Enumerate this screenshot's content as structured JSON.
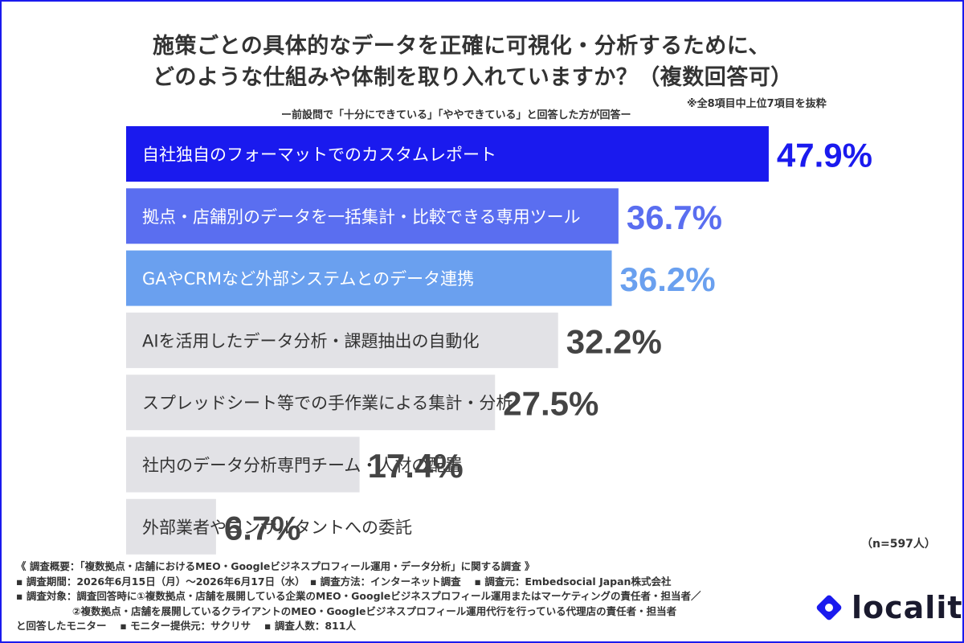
{
  "title_line1": "施策ごとの具体的なデータを正確に可視化・分析するために、",
  "title_line2": "どのような仕組みや体制を取り入れていますか？（複数回答可）",
  "subtitle": "ー前設問で「十分にできている」「ややできている」と回答した方が回答ー",
  "extract_note": "※全8項目中上位7項目を抜粋",
  "sample_note": "（n=597人）",
  "chart_data": {
    "type": "bar",
    "orientation": "horizontal",
    "unit": "%",
    "categories": [
      "自社独自のフォーマットでのカスタムレポート",
      "拠点・店舗別のデータを一括集計・比較できる専用ツール",
      "GAやCRMなど外部システムとのデータ連携",
      "AIを活用したデータ分析・課題抽出の自動化",
      "スプレッドシート等での手作業による集計・分析",
      "社内のデータ分析専門チーム・人材の配置",
      "外部業者やコンサルタントへの委託"
    ],
    "values": [
      47.9,
      36.7,
      36.2,
      32.2,
      27.5,
      17.4,
      6.7
    ],
    "value_labels": [
      "47.9%",
      "36.7%",
      "36.2%",
      "32.2%",
      "27.5%",
      "17.4%",
      "6.7%"
    ],
    "bar_colors": [
      "#1a1aee",
      "#5a6ef0",
      "#6aa0ef",
      "#e2e2e6",
      "#e2e2e6",
      "#e2e2e6",
      "#e2e2e6"
    ],
    "label_colors": [
      "#ffffff",
      "#ffffff",
      "#ffffff",
      "#333333",
      "#333333",
      "#333333",
      "#333333"
    ],
    "value_colors": [
      "#1a1aee",
      "#5a6ef0",
      "#6aa0ef",
      "#444444",
      "#444444",
      "#444444",
      "#444444"
    ]
  },
  "footer": {
    "line1": "《 調査概要：「複数拠点・店舗におけるMEO・Googleビジネスプロフィール運用・データ分析」に関する調査 》",
    "line2": "▪ 調査期間：2026年6月15日（月）〜2026年6月17日（水）　▪ 調査方法：インターネット調査　 ▪ 調査元：Embedsocial Japan株式会社",
    "line3": "▪ 調査対象：調査回答時に①複数拠点・店舗を展開している企業のMEO・Googleビジネスプロフィール運用またはマーケティングの責任者・担当者／",
    "line4": "②複数拠点・店舗を展開しているクライアントのMEO・Googleビジネスプロフィール運用代行を行っている代理店の責任者・担当者",
    "line5": "と回答したモニター　 ▪ モニター提供元：サクリサ　 ▪ 調査人数：811人"
  },
  "logo": {
    "text": "localith",
    "icon": "localith-diamond-icon",
    "color": "#1a1aee"
  }
}
